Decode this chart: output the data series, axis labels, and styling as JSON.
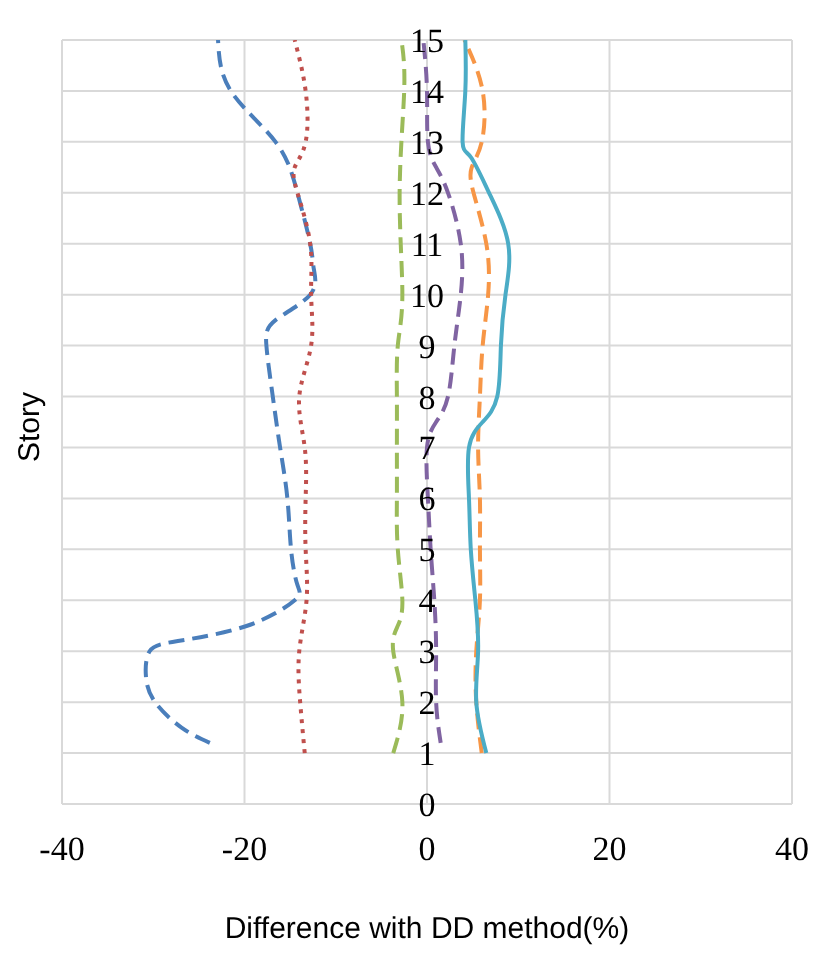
{
  "chart_data": {
    "type": "line",
    "xlabel": "Difference with DD method(%)",
    "ylabel": "Story",
    "xlim": [
      -40,
      40
    ],
    "xticks": [
      -40,
      -20,
      0,
      20,
      40
    ],
    "ylim": [
      0,
      15
    ],
    "yticks": [
      0,
      1,
      2,
      3,
      4,
      5,
      6,
      7,
      8,
      9,
      10,
      11,
      12,
      13,
      14,
      15
    ],
    "grid": true,
    "marker": "none",
    "series": [
      {
        "color": "#4a7ebb",
        "line_style": "dashed",
        "x": [
          -23.8,
          -26.9,
          -29.8,
          -30.8,
          -30.4,
          -27.3,
          -19.7,
          -14.5,
          -14.2,
          -14.9,
          -15.3,
          -16.1,
          -16.9,
          -17.6,
          -16.6,
          -12.8,
          -12.4,
          -12.8,
          -14.2,
          -16.6,
          -21.5,
          -22.9
        ],
        "values": [
          1.2,
          1.5,
          2,
          2.5,
          3,
          3.2,
          3.5,
          4,
          4.3,
          5,
          6,
          7,
          8,
          9,
          9.5,
          10,
          10.5,
          11,
          12,
          13,
          14,
          15
        ]
      },
      {
        "color": "#c0504d",
        "line_style": "dotted",
        "x": [
          -13.4,
          -13.9,
          -14,
          -13.2,
          -13.3,
          -13.3,
          -13.4,
          -14,
          -12.7,
          -12.7,
          -12.8,
          -14.2,
          -14.5,
          -13.3,
          -13.3,
          -14.5
        ],
        "values": [
          1,
          2,
          3,
          4,
          5,
          6,
          7,
          8,
          9,
          10,
          11,
          12,
          12.5,
          13,
          14,
          15
        ]
      },
      {
        "color": "#9bbb59",
        "line_style": "dashed",
        "x": [
          -3.7,
          -2.7,
          -3.7,
          -3.2,
          -2.7,
          -3.2,
          -3.3,
          -3.3,
          -3.3,
          -3.2,
          -2.7,
          -3,
          -2.5,
          -2.8
        ],
        "values": [
          1,
          2,
          3,
          3.5,
          4,
          5,
          6,
          7,
          8,
          9,
          10,
          12,
          14,
          15
        ]
      },
      {
        "color": "#8064a2",
        "line_style": "dashed",
        "x": [
          1.5,
          1,
          1,
          0.8,
          0.4,
          0.1,
          0,
          1,
          2.3,
          3,
          3.7,
          3.7,
          2.3,
          1,
          0.1,
          0,
          -0.4
        ],
        "values": [
          1.2,
          2,
          3,
          4,
          5,
          6,
          7,
          7.5,
          8,
          9,
          10,
          11,
          12,
          12.5,
          13,
          14,
          15
        ]
      },
      {
        "color": "#f79646",
        "line_style": "dashed",
        "x": [
          6,
          5.4,
          5.4,
          5.8,
          5.8,
          5.8,
          5.6,
          5.8,
          6.1,
          6.7,
          6.5,
          5.1,
          4.9,
          6,
          6.1,
          4.1
        ],
        "values": [
          1,
          2,
          3,
          4,
          5,
          6,
          7,
          8,
          9,
          10,
          11,
          12,
          12.5,
          13,
          14,
          15
        ]
      },
      {
        "color": "#4bacc6",
        "line_style": "solid",
        "x": [
          6.5,
          5.4,
          5.6,
          5.3,
          4.8,
          4.6,
          4.6,
          6.1,
          7.7,
          8.1,
          8.6,
          8.9,
          6.8,
          4.8,
          3.9,
          4.2,
          4.2
        ],
        "values": [
          1,
          2,
          3,
          4,
          5,
          6,
          7,
          7.5,
          8,
          9,
          10,
          11,
          12,
          12.7,
          13,
          14,
          15
        ]
      }
    ]
  }
}
